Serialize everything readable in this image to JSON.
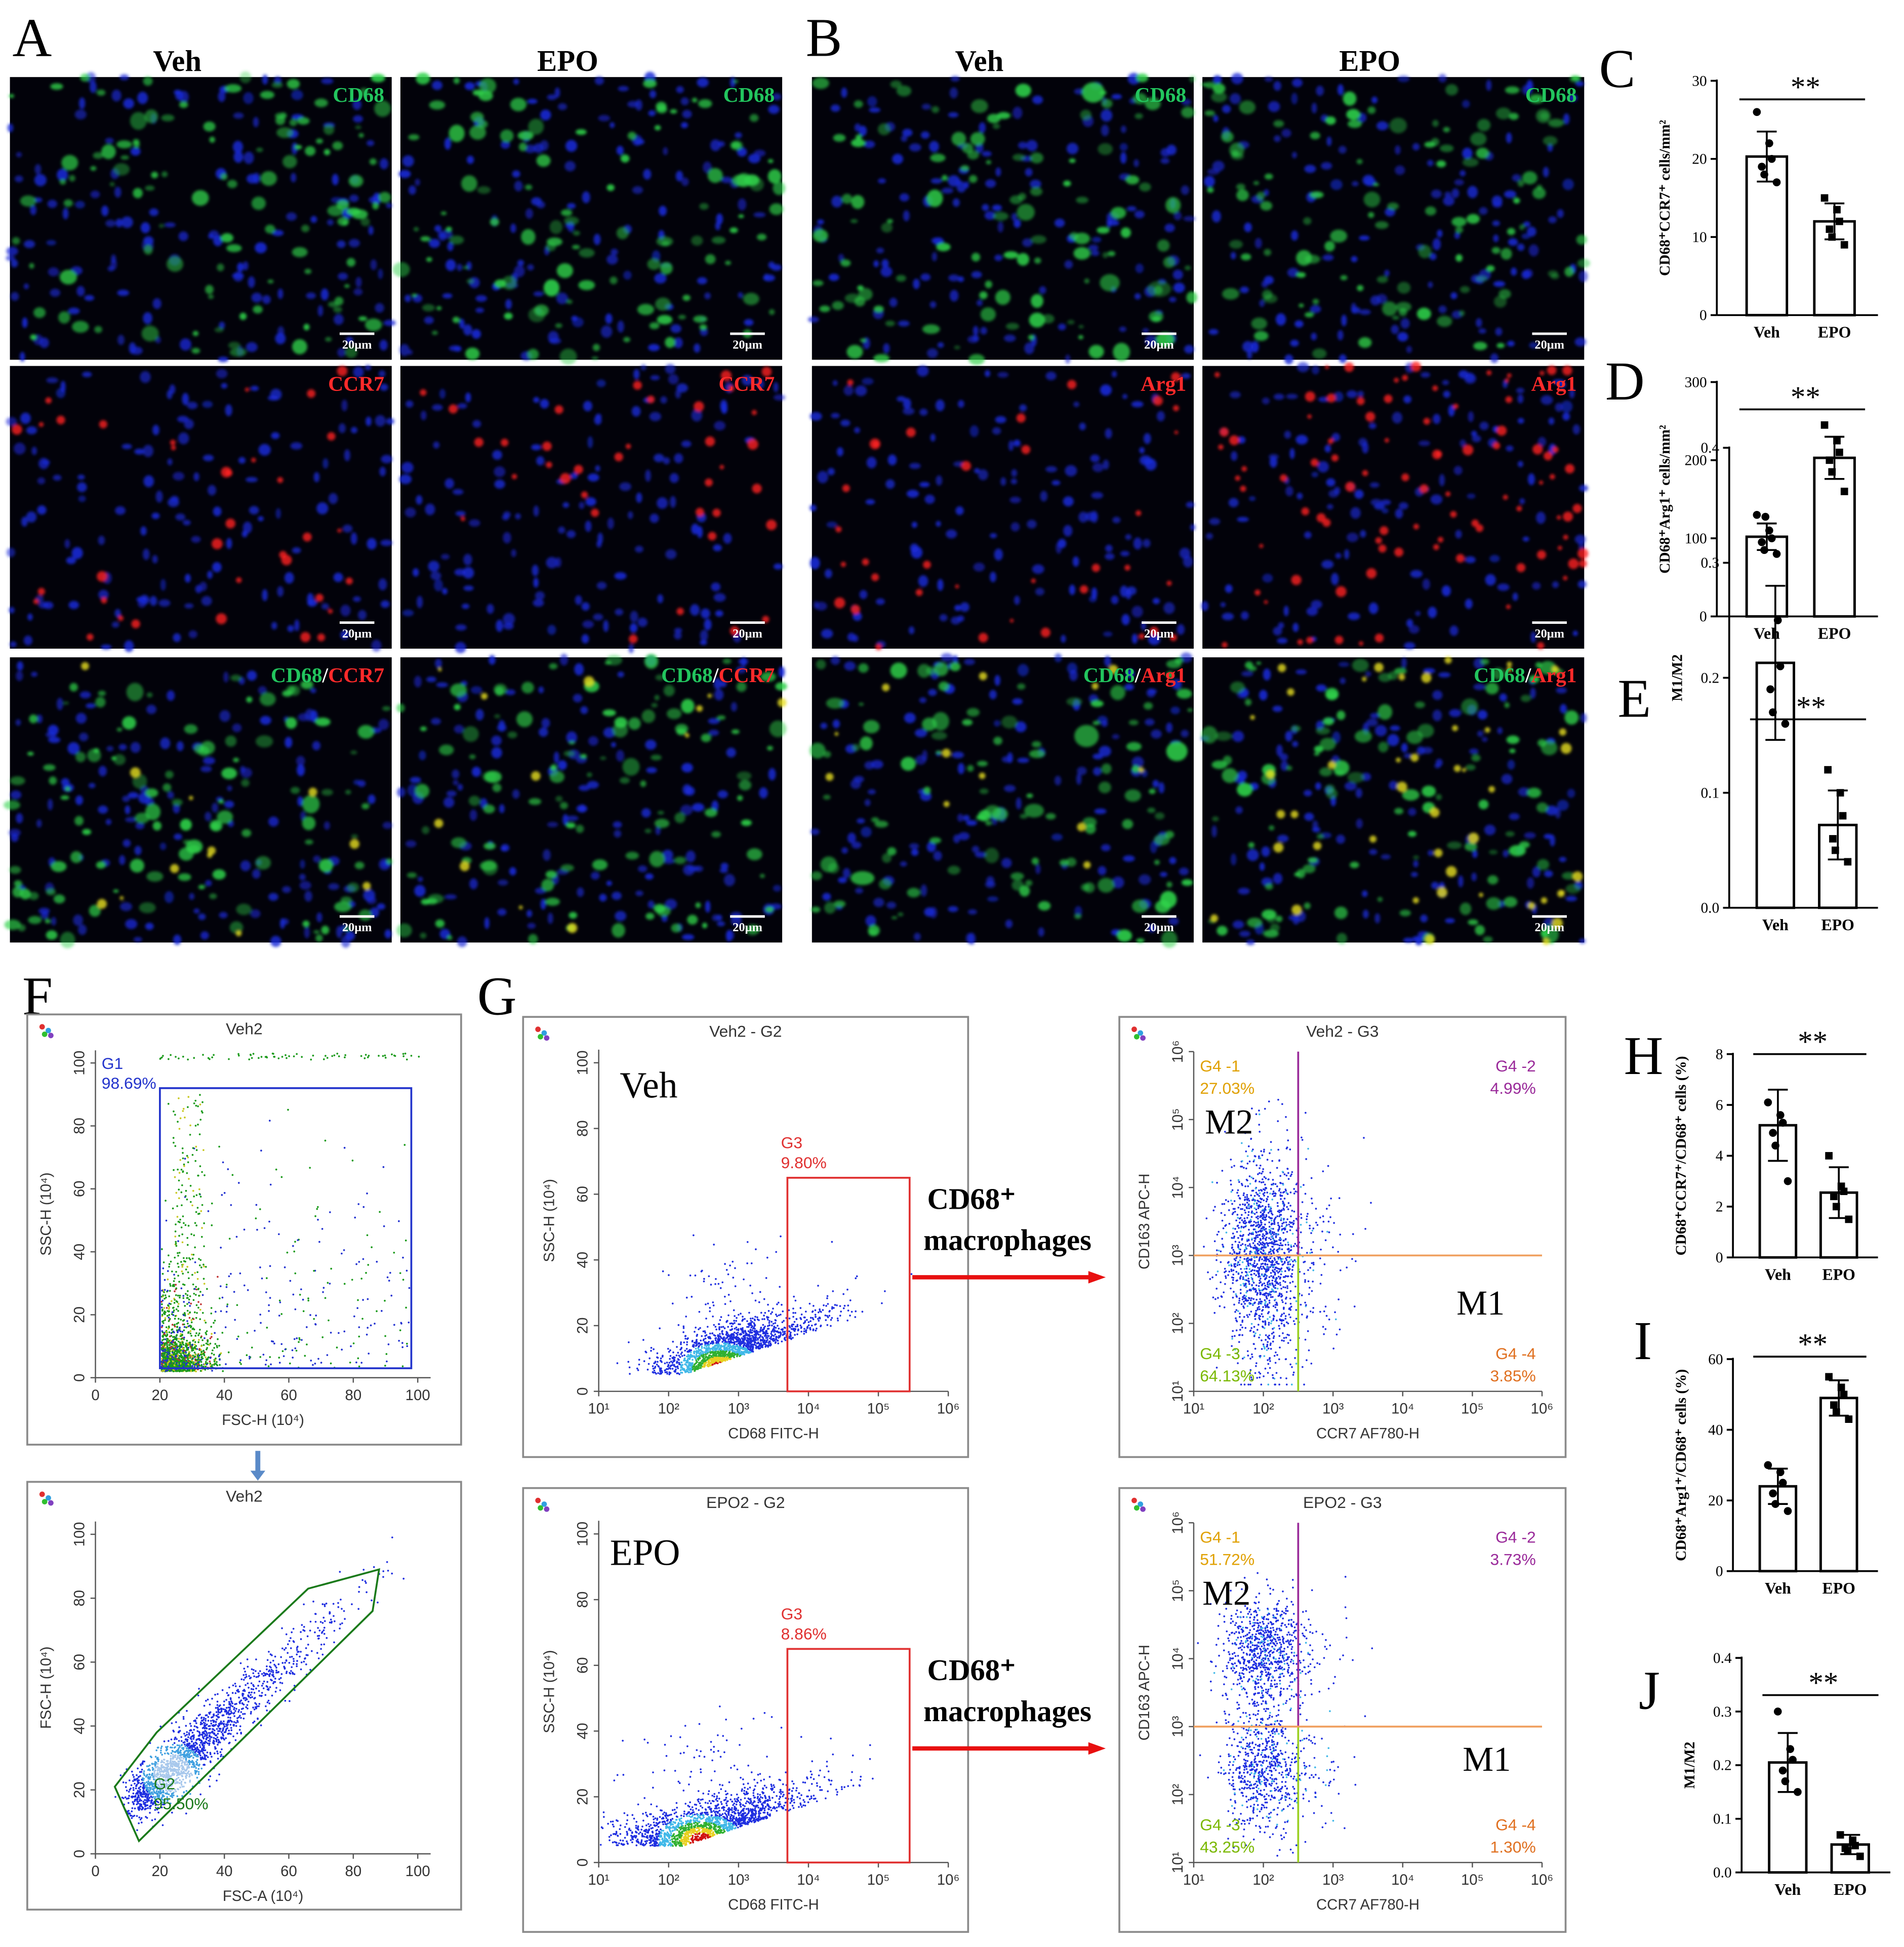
{
  "panel_A": {
    "label": "A",
    "columns": [
      "Veh",
      "EPO"
    ],
    "scale_bar": "20μm",
    "rows": [
      [
        {
          "text": "CD68",
          "color": "#22c55e"
        }
      ],
      [
        {
          "text": "CCR7",
          "color": "#ff2a2a"
        }
      ],
      [
        {
          "text": "CD68",
          "color": "#22c55e"
        },
        {
          "text": "/",
          "color": "#ffffff"
        },
        {
          "text": "CCR7",
          "color": "#ff2a2a"
        }
      ]
    ]
  },
  "panel_B": {
    "label": "B",
    "columns": [
      "Veh",
      "EPO"
    ],
    "scale_bar": "20μm",
    "rows": [
      [
        {
          "text": "CD68",
          "color": "#22c55e"
        }
      ],
      [
        {
          "text": "Arg1",
          "color": "#ff2a2a"
        }
      ],
      [
        {
          "text": "CD68",
          "color": "#22c55e"
        },
        {
          "text": "/",
          "color": "#ffffff"
        },
        {
          "text": "Arg1",
          "color": "#ff2a2a"
        }
      ]
    ]
  },
  "panel_F": {
    "label": "F"
  },
  "panel_G": {
    "label": "G"
  },
  "chart_data": [
    {
      "type": "bar",
      "panel": "C",
      "y_label": "CD68⁺CCR7⁺ cells/mm²",
      "significance": "**",
      "color": "#000000",
      "fill": "#ffffff",
      "categories": [
        "Veh",
        "EPO"
      ],
      "values": [
        20.3,
        12
      ],
      "errors": [
        3.2,
        2.3
      ],
      "points": [
        [
          26,
          22,
          20,
          19,
          18,
          17
        ],
        [
          15,
          13.5,
          12,
          11,
          10,
          9
        ]
      ],
      "ylim": [
        0,
        30
      ],
      "yticks": [
        0,
        10,
        20,
        30
      ]
    },
    {
      "type": "bar",
      "panel": "D",
      "y_label": "CD68⁺Arg1⁺ cells/mm²",
      "significance": "**",
      "color": "#000000",
      "fill": "#ffffff",
      "categories": [
        "Veh",
        "EPO"
      ],
      "values": [
        102,
        203
      ],
      "errors": [
        17,
        27
      ],
      "points": [
        [
          130,
          110,
          100,
          95,
          85,
          80
        ],
        [
          245,
          225,
          210,
          200,
          185,
          160
        ]
      ],
      "ylim": [
        0,
        300
      ],
      "yticks": [
        0,
        100,
        200,
        300
      ]
    },
    {
      "type": "bar",
      "panel": "E",
      "y_label": "M1/M2",
      "significance": "**",
      "color": "#000000",
      "fill": "#ffffff",
      "categories": [
        "Veh",
        "EPO"
      ],
      "values": [
        0.213,
        0.072
      ],
      "errors": [
        0.067,
        0.03
      ],
      "points": [
        [
          0.34,
          0.25,
          0.21,
          0.19,
          0.17,
          0.16
        ],
        [
          0.12,
          0.1,
          0.08,
          0.06,
          0.05,
          0.04
        ]
      ],
      "ylim": [
        0,
        0.4
      ],
      "yticks": [
        {
          "value": 0,
          "label": "0.0"
        },
        0.1,
        0.2,
        0.3,
        0.4
      ]
    },
    {
      "type": "bar",
      "panel": "H",
      "y_label": "CD68⁺CCR7⁺/CD68⁺ cells (%)",
      "significance": "**",
      "color": "#000000",
      "fill": "#ffffff",
      "categories": [
        "Veh",
        "EPO"
      ],
      "values": [
        5.2,
        2.55
      ],
      "errors": [
        1.4,
        1.0
      ],
      "points": [
        [
          6.1,
          5.6,
          5.3,
          4.9,
          4.4,
          3.0
        ],
        [
          4.0,
          2.8,
          2.6,
          2.4,
          2.0,
          1.5
        ]
      ],
      "ylim": [
        0,
        8
      ],
      "yticks": [
        0,
        2,
        4,
        6,
        8
      ]
    },
    {
      "type": "bar",
      "panel": "I",
      "y_label": "CD68⁺Arg1⁺/CD68⁺ cells (%)",
      "significance": "**",
      "color": "#000000",
      "fill": "#ffffff",
      "categories": [
        "Veh",
        "EPO"
      ],
      "values": [
        24,
        49
      ],
      "errors": [
        5,
        5
      ],
      "points": [
        [
          30,
          28,
          25,
          22,
          19,
          17
        ],
        [
          55,
          52,
          50,
          47,
          45,
          43
        ]
      ],
      "ylim": [
        0,
        60
      ],
      "yticks": [
        0,
        20,
        40,
        60
      ]
    },
    {
      "type": "bar",
      "panel": "J",
      "y_label": "M1/M2",
      "significance": "**",
      "color": "#000000",
      "fill": "#ffffff",
      "categories": [
        "Veh",
        "EPO"
      ],
      "values": [
        0.205,
        0.052
      ],
      "errors": [
        0.055,
        0.018
      ],
      "points": [
        [
          0.3,
          0.23,
          0.21,
          0.19,
          0.17,
          0.15
        ],
        [
          0.07,
          0.06,
          0.05,
          0.045,
          0.04,
          0.03
        ]
      ],
      "ylim": [
        0,
        0.4
      ],
      "yticks": [
        {
          "value": 0,
          "label": "0.0"
        },
        0.1,
        0.2,
        0.3,
        0.4
      ]
    },
    {
      "type": "cytometry",
      "title": "Veh2",
      "x_label": "FSC-H (10⁴)",
      "y_label": "SSC-H (10⁴)",
      "xlim": [
        0,
        104
      ],
      "ylim": [
        0,
        104
      ],
      "xticks": [
        0,
        20,
        40,
        60,
        80,
        100
      ],
      "yticks": [
        0,
        20,
        40,
        60,
        80,
        100
      ],
      "gates": [
        {
          "name": "G1",
          "percent": "98.69%",
          "shape": "rect",
          "color": "#2233cc",
          "x": [
            20,
            98
          ],
          "y": [
            3,
            92
          ]
        }
      ]
    },
    {
      "type": "cytometry",
      "title": "Veh2",
      "x_label": "FSC-A (10⁴)",
      "y_label": "FSC-H (10⁴)",
      "xlim": [
        0,
        104
      ],
      "ylim": [
        0,
        104
      ],
      "xticks": [
        0,
        20,
        40,
        60,
        80,
        100
      ],
      "yticks": [
        0,
        20,
        40,
        60,
        80,
        100
      ],
      "gates": [
        {
          "name": "G2",
          "percent": "95.50%",
          "shape": "polygon",
          "color": "#1a7a1a",
          "points": [
            [
              6,
              21
            ],
            [
              19,
              38
            ],
            [
              66,
              83
            ],
            [
              88,
              89
            ],
            [
              86,
              76
            ],
            [
              13.5,
              4
            ]
          ]
        }
      ]
    },
    {
      "type": "cytometry",
      "title": "Veh2 - G2",
      "x_label": "CD68 FITC-H",
      "y_label": "SSC-H (10⁴)",
      "x_log": true,
      "group_label": "Veh",
      "arrow_label": [
        "CD68⁺",
        "macrophages"
      ],
      "arrow_color": "#e81010",
      "xlim": [
        10,
        1000000
      ],
      "ylim": [
        0,
        104
      ],
      "xticks": [
        {
          "value": 10,
          "label": "10¹"
        },
        {
          "value": 100,
          "label": "10²"
        },
        {
          "value": 1000,
          "label": "10³"
        },
        {
          "value": 10000,
          "label": "10⁴"
        },
        {
          "value": 100000,
          "label": "10⁵"
        },
        {
          "value": 1000000,
          "label": "10⁶"
        }
      ],
      "yticks": [
        0,
        20,
        40,
        60,
        80,
        100
      ],
      "gates": [
        {
          "name": "G3",
          "percent": "9.80%",
          "shape": "rect",
          "color": "#e03030",
          "x": [
            5000,
            280000
          ],
          "y": [
            0,
            65
          ]
        }
      ]
    },
    {
      "type": "cytometry",
      "title": "Veh2 - G3",
      "x_label": "CCR7 AF780-H",
      "y_label": "CD163 APC-H",
      "x_log": true,
      "y_log": true,
      "xlim": [
        10,
        1000000
      ],
      "ylim": [
        10,
        1000000
      ],
      "xticks": [
        {
          "value": 10,
          "label": "10¹"
        },
        {
          "value": 100,
          "label": "10²"
        },
        {
          "value": 1000,
          "label": "10³"
        },
        {
          "value": 10000,
          "label": "10⁴"
        },
        {
          "value": 100000,
          "label": "10⁵"
        },
        {
          "value": 1000000,
          "label": "10⁶"
        }
      ],
      "yticks": [
        {
          "value": 10,
          "label": "10¹"
        },
        {
          "value": 100,
          "label": "10²"
        },
        {
          "value": 1000,
          "label": "10³"
        },
        {
          "value": 10000,
          "label": "10⁴"
        },
        {
          "value": 100000,
          "label": "10⁵"
        },
        {
          "value": 1000000,
          "label": "10⁶"
        }
      ],
      "x_split": 316,
      "y_split": 1000,
      "quadrants": [
        {
          "name": "G4 -1",
          "percent": "27.03%",
          "color": "#e0a000"
        },
        {
          "name": "G4 -2",
          "percent": "4.99%",
          "color": "#9a2a9a"
        },
        {
          "name": "G4 -3",
          "percent": "64.13%",
          "color": "#7ab800"
        },
        {
          "name": "G4 -4",
          "percent": "3.85%",
          "color": "#e07020"
        }
      ],
      "regions": [
        "M2",
        "M1"
      ]
    },
    {
      "type": "cytometry",
      "title": "EPO2 - G2",
      "x_label": "CD68 FITC-H",
      "y_label": "SSC-H (10⁴)",
      "x_log": true,
      "group_label": "EPO",
      "arrow_label": [
        "CD68⁺",
        "macrophages"
      ],
      "arrow_color": "#e81010",
      "xlim": [
        10,
        1000000
      ],
      "ylim": [
        0,
        104
      ],
      "xticks": [
        {
          "value": 10,
          "label": "10¹"
        },
        {
          "value": 100,
          "label": "10²"
        },
        {
          "value": 1000,
          "label": "10³"
        },
        {
          "value": 10000,
          "label": "10⁴"
        },
        {
          "value": 100000,
          "label": "10⁵"
        },
        {
          "value": 1000000,
          "label": "10⁶"
        }
      ],
      "yticks": [
        0,
        20,
        40,
        60,
        80,
        100
      ],
      "gates": [
        {
          "name": "G3",
          "percent": "8.86%",
          "shape": "rect",
          "color": "#e03030",
          "x": [
            5000,
            280000
          ],
          "y": [
            0,
            65
          ]
        }
      ]
    },
    {
      "type": "cytometry",
      "title": "EPO2 - G3",
      "x_label": "CCR7 AF780-H",
      "y_label": "CD163 APC-H",
      "x_log": true,
      "y_log": true,
      "xlim": [
        10,
        1000000
      ],
      "ylim": [
        10,
        1000000
      ],
      "xticks": [
        {
          "value": 10,
          "label": "10¹"
        },
        {
          "value": 100,
          "label": "10²"
        },
        {
          "value": 1000,
          "label": "10³"
        },
        {
          "value": 10000,
          "label": "10⁴"
        },
        {
          "value": 100000,
          "label": "10⁵"
        },
        {
          "value": 1000000,
          "label": "10⁶"
        }
      ],
      "yticks": [
        {
          "value": 10,
          "label": "10¹"
        },
        {
          "value": 100,
          "label": "10²"
        },
        {
          "value": 1000,
          "label": "10³"
        },
        {
          "value": 10000,
          "label": "10⁴"
        },
        {
          "value": 100000,
          "label": "10⁵"
        },
        {
          "value": 1000000,
          "label": "10⁶"
        }
      ],
      "x_split": 316,
      "y_split": 1000,
      "quadrants": [
        {
          "name": "G4 -1",
          "percent": "51.72%",
          "color": "#e0a000"
        },
        {
          "name": "G4 -2",
          "percent": "3.73%",
          "color": "#9a2a9a"
        },
        {
          "name": "G4 -3",
          "percent": "43.25%",
          "color": "#7ab800"
        },
        {
          "name": "G4 -4",
          "percent": "1.30%",
          "color": "#e07020"
        }
      ],
      "regions": [
        "M2",
        "M1"
      ]
    }
  ]
}
